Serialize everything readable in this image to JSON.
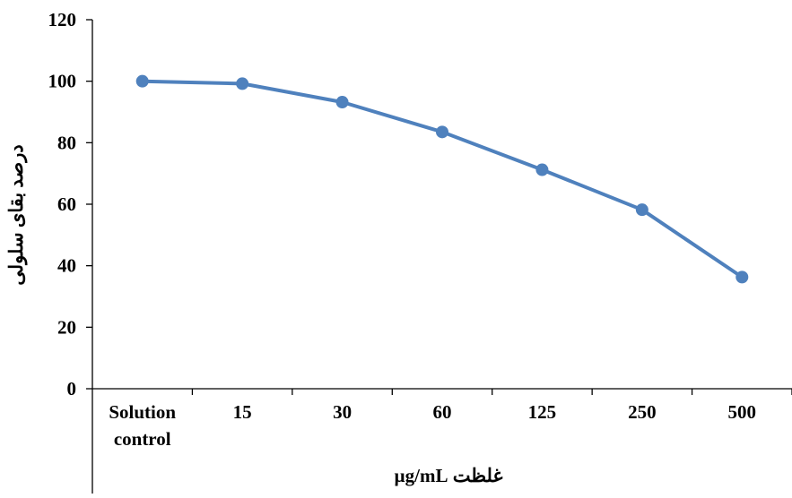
{
  "chart_data": {
    "type": "line",
    "title": "",
    "xlabel": "غلظت µg/mL",
    "ylabel": "درصد بقای سلولی",
    "categories": [
      [
        "Solution",
        "control"
      ],
      [
        "15"
      ],
      [
        "30"
      ],
      [
        "60"
      ],
      [
        "125"
      ],
      [
        "250"
      ],
      [
        "500"
      ]
    ],
    "series": [
      {
        "values": [
          100,
          99.2,
          93.2,
          83.5,
          71.2,
          58.2,
          36.3
        ],
        "color": "#4f81bd"
      }
    ],
    "ylim": [
      0,
      120
    ],
    "yticks": [
      0,
      20,
      40,
      60,
      80,
      100,
      120
    ],
    "grid": false,
    "legend": "none"
  }
}
